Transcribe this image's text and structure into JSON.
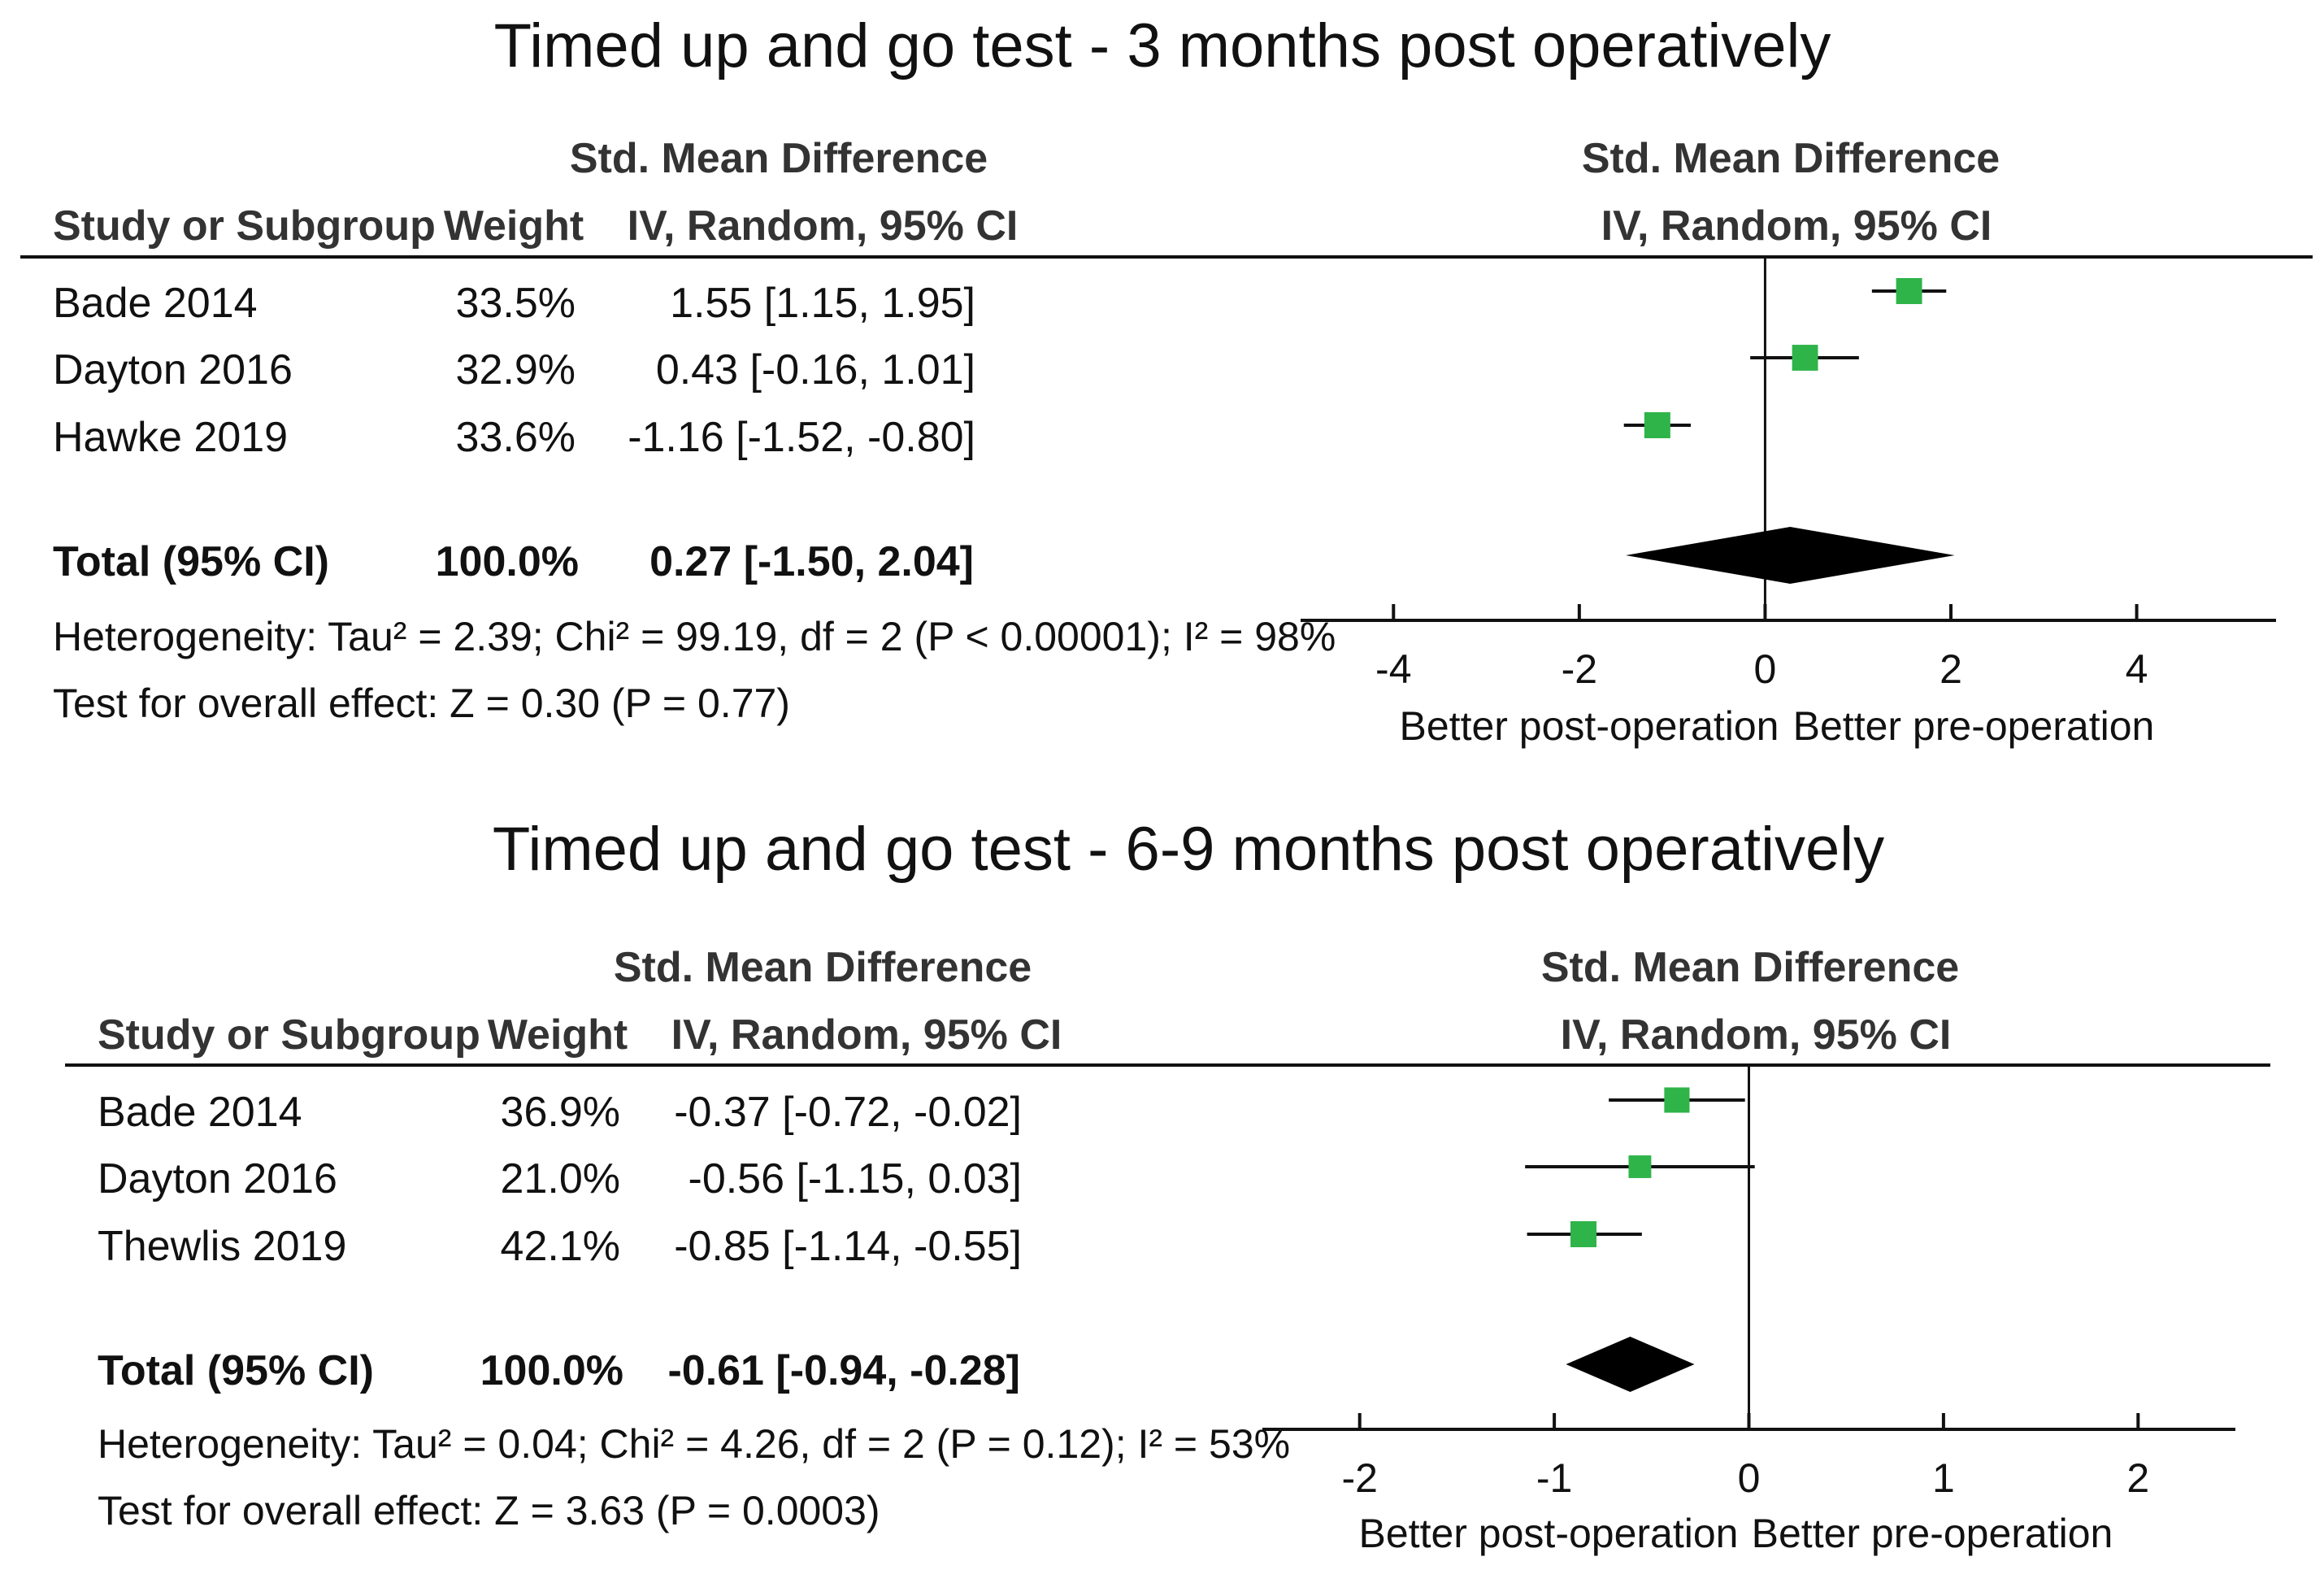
{
  "chart_data": [
    {
      "type": "forest",
      "title": "Timed up and go test - 3 months post operatively",
      "header": {
        "col_study": "Study or Subgroup",
        "col_weight": "Weight",
        "col_effect_top": "Std. Mean Difference",
        "col_effect_bottom": "IV, Random, 95% CI",
        "plot_top": "Std. Mean Difference",
        "plot_bottom": "IV, Random, 95% CI"
      },
      "studies": [
        {
          "name": "Bade 2014",
          "weight": "33.5%",
          "weight_value": 33.5,
          "smd": 1.55,
          "lower": 1.15,
          "upper": 1.95,
          "ci_text": "1.55 [1.15, 1.95]",
          "color": "#2fb44a"
        },
        {
          "name": "Dayton 2016",
          "weight": "32.9%",
          "weight_value": 32.9,
          "smd": 0.43,
          "lower": -0.16,
          "upper": 1.01,
          "ci_text": "0.43 [-0.16, 1.01]",
          "color": "#2fb44a"
        },
        {
          "name": "Hawke 2019",
          "weight": "33.6%",
          "weight_value": 33.6,
          "smd": -1.16,
          "lower": -1.52,
          "upper": -0.8,
          "ci_text": "-1.16 [-1.52, -0.80]",
          "color": "#2fb44a"
        }
      ],
      "total": {
        "label": "Total (95% CI)",
        "weight": "100.0%",
        "smd": 0.27,
        "lower": -1.5,
        "upper": 2.04,
        "ci_text": "0.27 [-1.50, 2.04]"
      },
      "heterogeneity": "Heterogeneity: Tau² = 2.39; Chi² = 99.19, df = 2 (P < 0.00001); I² = 98%",
      "overall_effect": "Test for overall effect: Z = 0.30 (P = 0.77)",
      "xlim": [
        -5,
        5.5
      ],
      "ticks": [
        -4,
        -2,
        0,
        2,
        4
      ],
      "tick_labels": [
        "-4",
        "-2",
        "0",
        "2",
        "4"
      ],
      "favours_left": "Better post-operation",
      "favours_right": "Better pre-operation"
    },
    {
      "type": "forest",
      "title": "Timed up and go test - 6-9 months post operatively",
      "header": {
        "col_study": "Study or Subgroup",
        "col_weight": "Weight",
        "col_effect_top": "Std. Mean Difference",
        "col_effect_bottom": "IV, Random, 95% CI",
        "plot_top": "Std. Mean Difference",
        "plot_bottom": "IV, Random, 95% CI"
      },
      "studies": [
        {
          "name": "Bade 2014",
          "weight": "36.9%",
          "weight_value": 36.9,
          "smd": -0.37,
          "lower": -0.72,
          "upper": -0.02,
          "ci_text": "-0.37 [-0.72, -0.02]",
          "color": "#2fb44a"
        },
        {
          "name": "Dayton 2016",
          "weight": "21.0%",
          "weight_value": 21.0,
          "smd": -0.56,
          "lower": -1.15,
          "upper": 0.03,
          "ci_text": "-0.56 [-1.15, 0.03]",
          "color": "#2fb44a"
        },
        {
          "name": "Thewlis 2019",
          "weight": "42.1%",
          "weight_value": 42.1,
          "smd": -0.85,
          "lower": -1.14,
          "upper": -0.55,
          "ci_text": "-0.85 [-1.14, -0.55]",
          "color": "#2fb44a"
        }
      ],
      "total": {
        "label": "Total (95% CI)",
        "weight": "100.0%",
        "smd": -0.61,
        "lower": -0.94,
        "upper": -0.28,
        "ci_text": "-0.61 [-0.94, -0.28]"
      },
      "heterogeneity": "Heterogeneity: Tau² = 0.04; Chi² = 4.26, df = 2 (P = 0.12); I² = 53%",
      "overall_effect": "Test for overall effect: Z = 3.63 (P = 0.0003)",
      "xlim": [
        -2.5,
        2.5
      ],
      "ticks": [
        -2,
        -1,
        0,
        1,
        2
      ],
      "tick_labels": [
        "-2",
        "-1",
        "0",
        "1",
        "2"
      ],
      "favours_left": "Better post-operation",
      "favours_right": "Better pre-operation"
    }
  ]
}
